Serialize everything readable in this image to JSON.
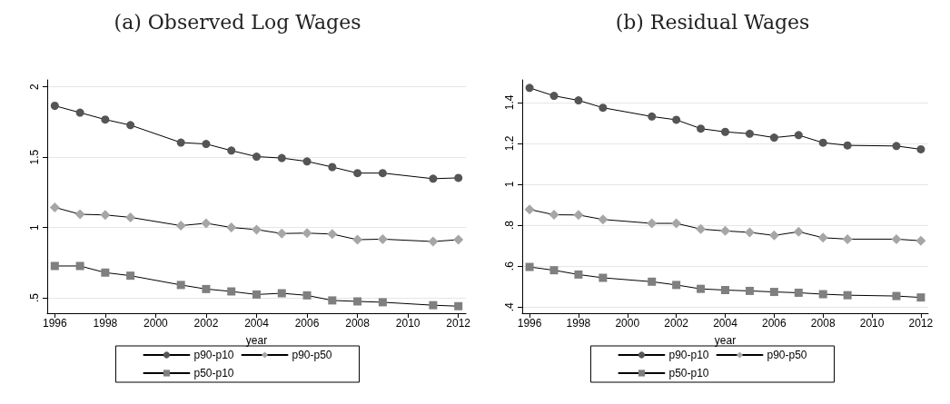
{
  "chart_data": [
    {
      "type": "line",
      "title": "(a) Observed Log Wages",
      "xlabel": "year",
      "x": [
        1996,
        1997,
        1998,
        1999,
        2001,
        2002,
        2003,
        2004,
        2005,
        2006,
        2007,
        2008,
        2009,
        2011,
        2012
      ],
      "series": [
        {
          "name": "p90-p10",
          "color": "#555555",
          "marker": "circle",
          "values": [
            1.866,
            1.817,
            1.768,
            1.728,
            1.604,
            1.594,
            1.547,
            1.504,
            1.494,
            1.47,
            1.43,
            1.387,
            1.387,
            1.347,
            1.353
          ]
        },
        {
          "name": "p90-p50",
          "color": "#a6a6a6",
          "marker": "diamond",
          "values": [
            1.143,
            1.094,
            1.089,
            1.072,
            1.013,
            1.03,
            1.0,
            0.985,
            0.957,
            0.96,
            0.953,
            0.913,
            0.917,
            0.9,
            0.913
          ]
        },
        {
          "name": "p50-p10",
          "color": "#7f7f7f",
          "marker": "square",
          "values": [
            0.726,
            0.726,
            0.679,
            0.657,
            0.591,
            0.562,
            0.545,
            0.523,
            0.532,
            0.517,
            0.481,
            0.474,
            0.468,
            0.447,
            0.44
          ]
        }
      ],
      "xlim": [
        1995.7,
        2012.3
      ],
      "ylim": [
        0.39,
        2.05
      ],
      "xticks": [
        1996,
        1998,
        2000,
        2002,
        2004,
        2006,
        2008,
        2010,
        2012
      ],
      "yticks": [
        {
          "value": 0.5,
          "label": ".5"
        },
        1,
        1.5,
        2
      ],
      "grid": "y",
      "legend": "bottom"
    },
    {
      "type": "line",
      "title": "(b) Residual Wages",
      "xlabel": "year",
      "x": [
        1996,
        1997,
        1998,
        1999,
        2001,
        2002,
        2003,
        2004,
        2005,
        2006,
        2007,
        2008,
        2009,
        2011,
        2012
      ],
      "series": [
        {
          "name": "p90-p10",
          "color": "#555555",
          "marker": "circle",
          "values": [
            1.471,
            1.432,
            1.41,
            1.374,
            1.331,
            1.315,
            1.272,
            1.256,
            1.247,
            1.228,
            1.24,
            1.203,
            1.19,
            1.187,
            1.171
          ]
        },
        {
          "name": "p90-p50",
          "color": "#a6a6a6",
          "marker": "diamond",
          "values": [
            0.877,
            0.851,
            0.85,
            0.828,
            0.809,
            0.809,
            0.781,
            0.772,
            0.765,
            0.75,
            0.768,
            0.739,
            0.732,
            0.732,
            0.724
          ]
        },
        {
          "name": "p50-p10",
          "color": "#7f7f7f",
          "marker": "square",
          "values": [
            0.596,
            0.58,
            0.559,
            0.543,
            0.524,
            0.508,
            0.489,
            0.483,
            0.479,
            0.474,
            0.47,
            0.463,
            0.458,
            0.454,
            0.447
          ]
        }
      ],
      "xlim": [
        1995.7,
        2012.3
      ],
      "ylim": [
        0.37,
        1.51
      ],
      "xticks": [
        1996,
        1998,
        2000,
        2002,
        2004,
        2006,
        2008,
        2010,
        2012
      ],
      "yticks": [
        {
          "value": 0.4,
          "label": ".4"
        },
        {
          "value": 0.6,
          "label": ".6"
        },
        {
          "value": 0.8,
          "label": ".8"
        },
        1,
        1.2,
        1.4
      ],
      "grid": "y",
      "legend": "bottom"
    }
  ]
}
